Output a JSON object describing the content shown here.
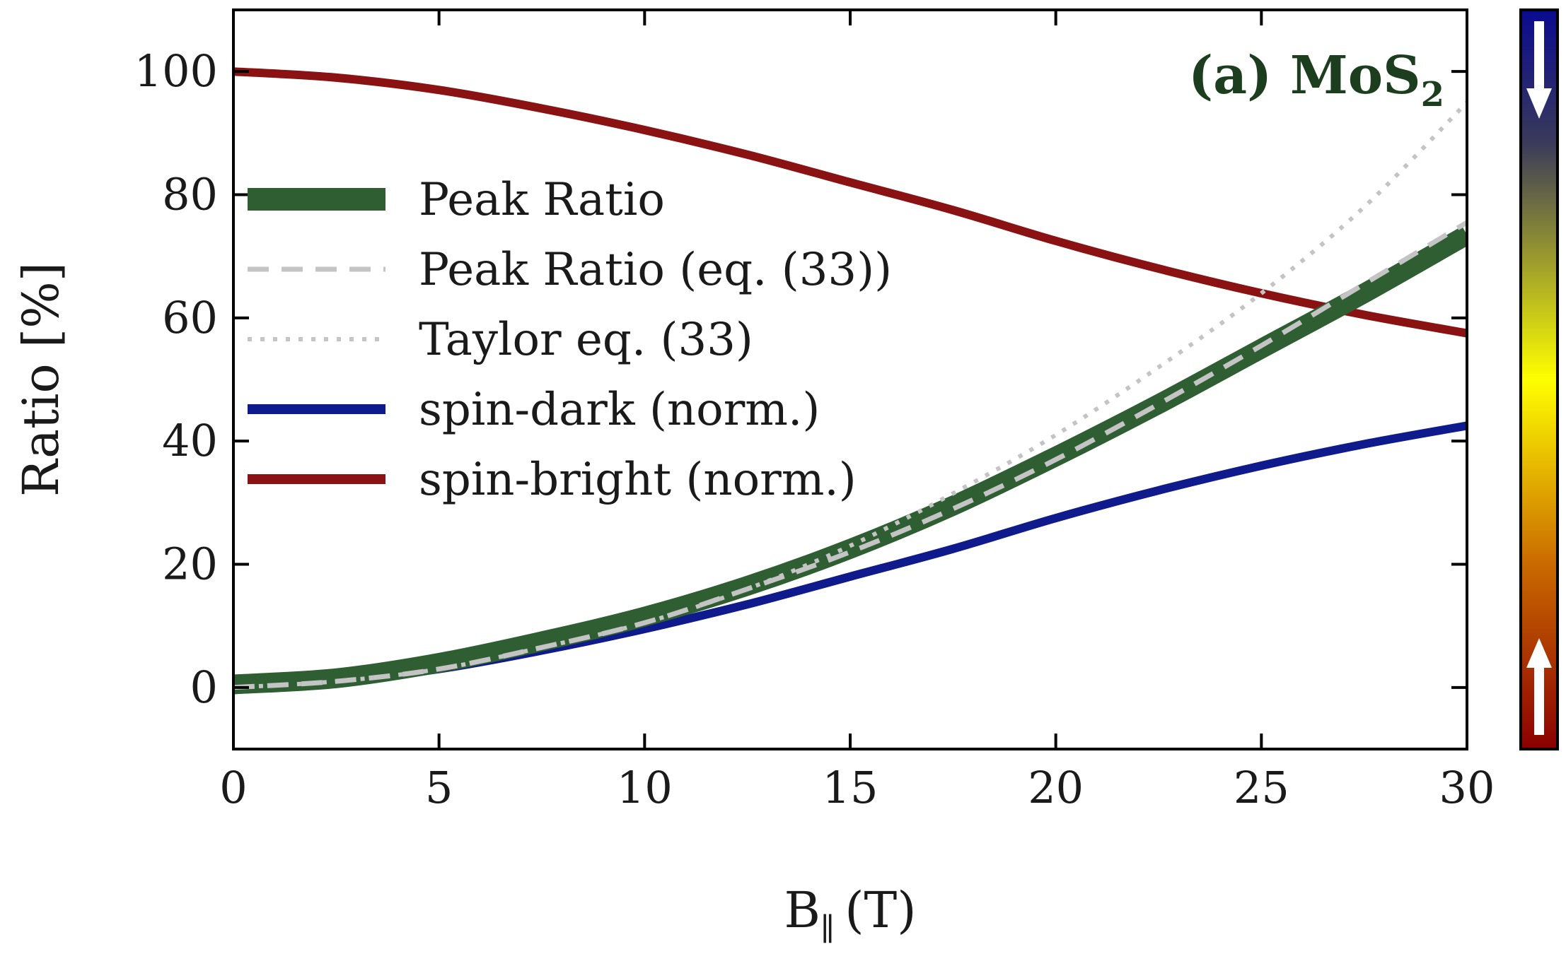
{
  "chart_data": {
    "type": "line",
    "title": "(a) MoS",
    "title_subscript": "2",
    "xlabel": "B",
    "xlabel_subscript": "∥",
    "xlabel_unit": "(T)",
    "ylabel": "Ratio [%]",
    "xlim": [
      0,
      30
    ],
    "ylim": [
      -10,
      110
    ],
    "xticks": [
      0,
      5,
      10,
      15,
      20,
      25,
      30
    ],
    "yticks": [
      0,
      20,
      40,
      60,
      80,
      100
    ],
    "grid": false,
    "legend_position": "center-left",
    "x": [
      0,
      2.5,
      5,
      7.5,
      10,
      12.5,
      15,
      17.5,
      20,
      22.5,
      25,
      27.5,
      30
    ],
    "series": [
      {
        "name": "Peak Ratio",
        "color": "#2e5e32",
        "style": "solid-thick",
        "values": [
          0.5,
          1.5,
          4,
          7.5,
          11.5,
          16.5,
          22.5,
          29.5,
          37.5,
          46,
          55,
          64,
          73.5
        ]
      },
      {
        "name": "Peak Ratio (eq. (33))",
        "color": "#c4c4c4",
        "style": "dashed",
        "values": [
          0,
          1,
          3,
          6.5,
          10.5,
          16,
          22,
          29,
          37,
          46,
          55.5,
          65.5,
          75.5
        ]
      },
      {
        "name": "Taylor eq. (33)",
        "color": "#c4c4c4",
        "style": "dotted",
        "values": [
          0,
          1,
          3,
          6.5,
          10.5,
          16,
          23,
          31.5,
          41,
          52,
          64,
          78,
          95
        ]
      },
      {
        "name": "spin-dark (norm.)",
        "color": "#0f1a8c",
        "style": "solid",
        "values": [
          0,
          1,
          3,
          6,
          9.5,
          13.5,
          18,
          22.5,
          27.5,
          32,
          36,
          39.5,
          42.5
        ]
      },
      {
        "name": "spin-bright (norm.)",
        "color": "#8b1212",
        "style": "solid",
        "values": [
          100,
          99,
          97,
          94,
          90.5,
          86.5,
          82,
          77.5,
          72.5,
          68,
          64,
          60.5,
          57.5
        ]
      }
    ],
    "colorbar": {
      "colors": [
        "#8b0000",
        "#c96a00",
        "#ffff00",
        "#3a3a5a",
        "#0a0a90"
      ],
      "top_arrow": "down-arrow-icon",
      "bottom_arrow": "up-arrow-icon"
    }
  }
}
